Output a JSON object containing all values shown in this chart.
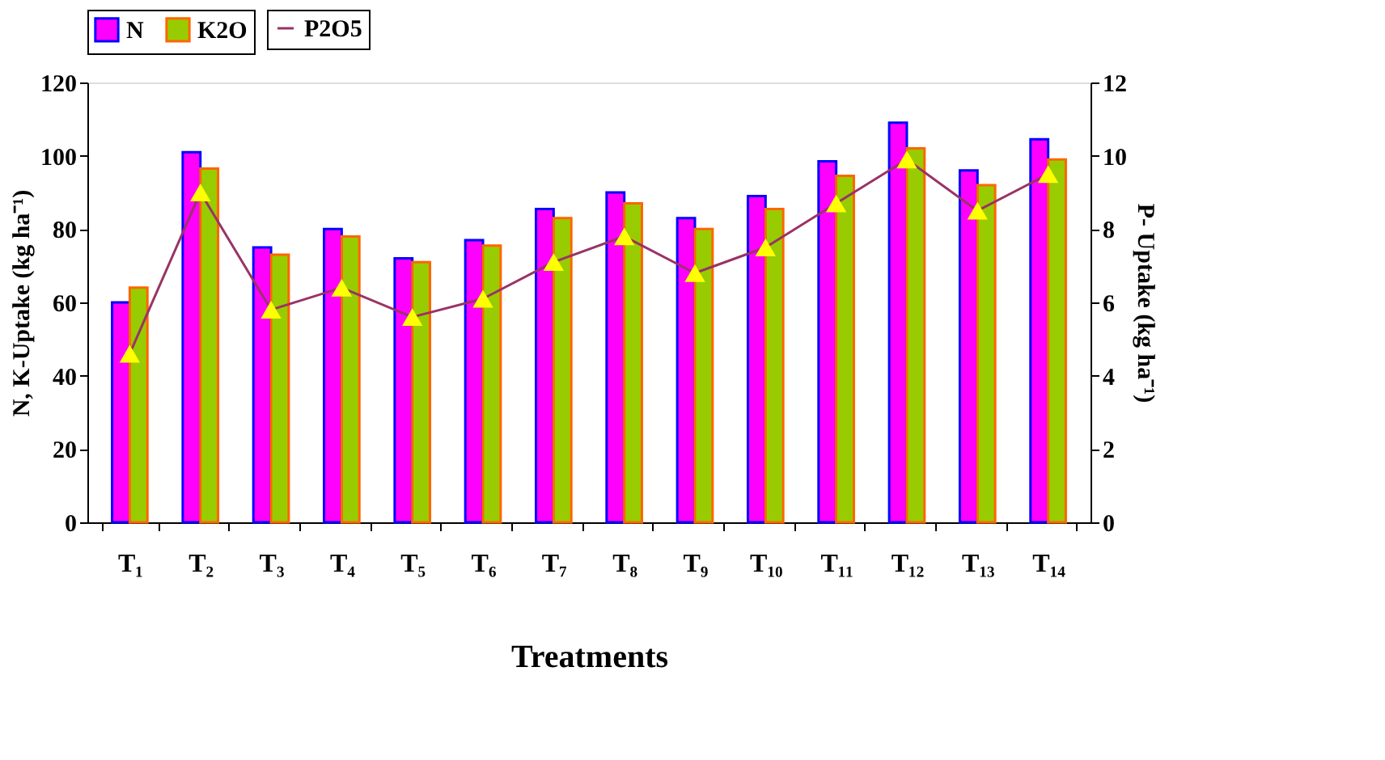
{
  "chart_data": {
    "type": "bar",
    "xlabel": "Treatments",
    "ylabel": "N, K-Uptake (kg ha⁻¹)",
    "y2label": "P- Uptake (kg ha⁻¹)",
    "categories": [
      "T₁",
      "T₂",
      "T₃",
      "T₄",
      "T₅",
      "T₆",
      "T₇",
      "T₈",
      "T₉",
      "T₁₀",
      "T₁₁",
      "T₁₂",
      "T₁₃",
      "T₁₄"
    ],
    "series": [
      {
        "name": "N",
        "color": "#ff00ff",
        "values": [
          60,
          101,
          75,
          80,
          72,
          77,
          85.5,
          90,
          83,
          89,
          98.5,
          109,
          96,
          104.5
        ]
      },
      {
        "name": "K2O",
        "color": "#99cc00",
        "values": [
          64,
          96.5,
          73,
          78,
          71,
          75.5,
          83,
          87,
          80,
          85.5,
          94.5,
          102,
          92,
          99
        ]
      },
      {
        "name": "P2O5",
        "type": "line",
        "axis": "y2",
        "color": "#993366",
        "marker": "triangle",
        "values": [
          4.6,
          9.0,
          5.8,
          6.4,
          5.6,
          6.1,
          7.1,
          7.8,
          6.8,
          7.5,
          8.7,
          9.9,
          8.5,
          9.5
        ]
      }
    ],
    "ylim": [
      0,
      120
    ],
    "yticks": [
      0,
      20,
      40,
      60,
      80,
      100,
      120
    ],
    "y2lim": [
      0,
      12
    ],
    "y2ticks": [
      0,
      2,
      4,
      6,
      8,
      10,
      12
    ],
    "grid": false,
    "legend": "top"
  }
}
